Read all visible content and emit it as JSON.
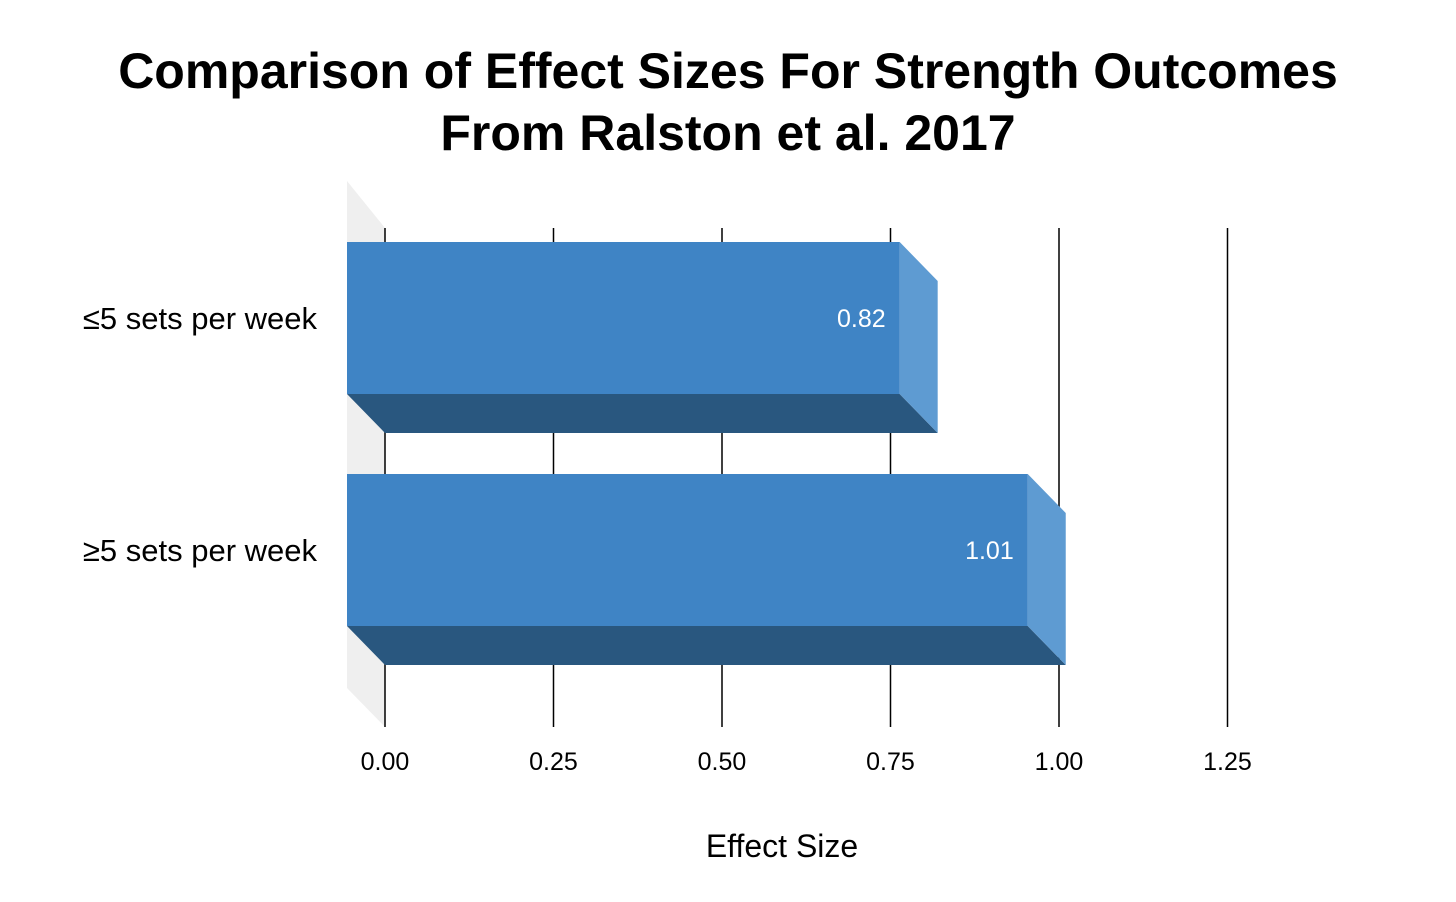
{
  "chart_data": {
    "type": "bar",
    "orientation": "horizontal",
    "title_lines": [
      "Comparison of Effect Sizes For Strength Outcomes",
      "From Ralston et al. 2017"
    ],
    "categories": [
      "≤5 sets per week",
      "≥5 sets per week"
    ],
    "values": [
      0.82,
      1.01
    ],
    "data_labels": [
      "0.82",
      "1.01"
    ],
    "xlabel": "Effect Size",
    "ylabel": "",
    "xlim": [
      0,
      1.25
    ],
    "xticks": [
      0,
      0.25,
      0.5,
      0.75,
      1.0,
      1.25
    ],
    "xtick_labels": [
      "0.00",
      "0.25",
      "0.50",
      "0.75",
      "1.00",
      "1.25"
    ],
    "grid": true,
    "legend": "none",
    "style": "3d",
    "colors": {
      "bar_front": "#3f84c5",
      "bar_side": "#5e9bd2",
      "bar_bottom": "#29577f",
      "wall": "#efefef",
      "grid": "#000000"
    }
  }
}
